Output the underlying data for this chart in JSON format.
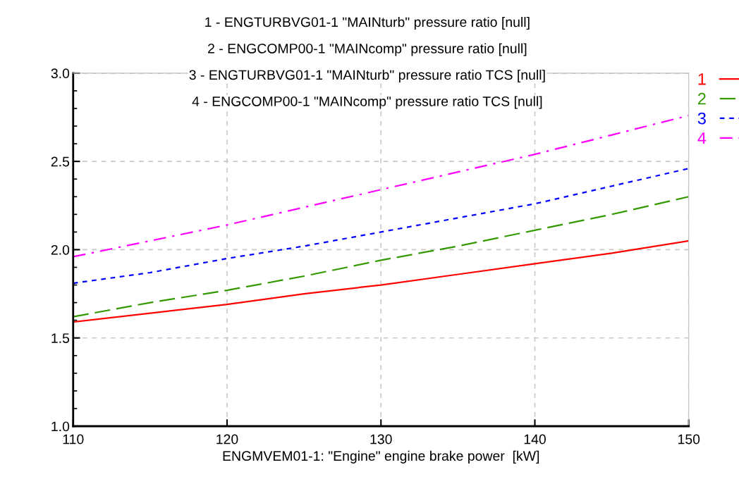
{
  "chart_data": {
    "type": "line",
    "xlabel": "ENGMVEM01-1: \"Engine\" engine brake power  [kW]",
    "annotations": [
      "1 - ENGTURBVG01-1 \"MAINturb\" pressure ratio [null]",
      "2 - ENGCOMP00-1 \"MAINcomp\" pressure ratio [null]",
      "3 - ENGTURBVG01-1 \"MAINturb\" pressure ratio TCS [null]",
      "4 - ENGCOMP00-1 \"MAINcomp\" pressure ratio TCS [null]"
    ],
    "x": [
      110,
      115,
      120,
      125,
      130,
      135,
      140,
      145,
      150
    ],
    "series": [
      {
        "name": "1",
        "color": "#ff0000",
        "line_style": "solid",
        "values": [
          1.59,
          1.64,
          1.69,
          1.75,
          1.8,
          1.86,
          1.92,
          1.98,
          2.05
        ]
      },
      {
        "name": "2",
        "color": "#339900",
        "line_style": "dashed",
        "values": [
          1.62,
          1.7,
          1.77,
          1.85,
          1.94,
          2.02,
          2.11,
          2.2,
          2.3
        ]
      },
      {
        "name": "3",
        "color": "#0000ff",
        "line_style": "dotted",
        "values": [
          1.81,
          1.87,
          1.95,
          2.02,
          2.1,
          2.18,
          2.26,
          2.36,
          2.46
        ]
      },
      {
        "name": "4",
        "color": "#ff00ff",
        "line_style": "dashdot",
        "values": [
          1.96,
          2.05,
          2.14,
          2.24,
          2.34,
          2.44,
          2.54,
          2.65,
          2.76
        ]
      }
    ],
    "xlim": [
      110,
      150
    ],
    "xticks": [
      110,
      120,
      130,
      140,
      150
    ],
    "ylim": [
      1.0,
      3.0
    ],
    "yticks": [
      {
        "value": 1.0,
        "label": "1.0"
      },
      {
        "value": 1.5,
        "label": "1.5"
      },
      {
        "value": 2.0,
        "label": "2.0"
      },
      {
        "value": 2.5,
        "label": "2.5"
      },
      {
        "value": 3.0,
        "label": "3.0"
      }
    ],
    "grid": true,
    "legend": "right",
    "marker": "none"
  }
}
